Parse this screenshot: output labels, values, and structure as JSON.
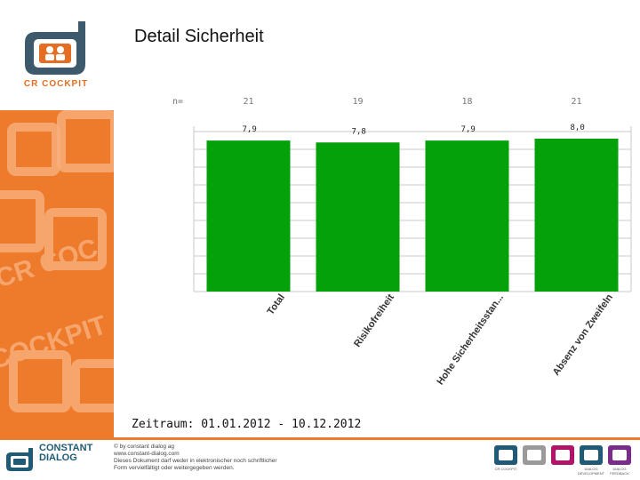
{
  "page": {
    "title": "Detail Sicherheit",
    "period": "Zeitraum: 01.01.2012 - 10.12.2012",
    "logo_label": "CR COCKPIT"
  },
  "footer": {
    "company_line1": "CONSTANT",
    "company_line2": "DIALOG",
    "copyright_lines": [
      "© by constant dialog ag",
      "www.constant-dialog.com",
      "Dieses Dokument darf weder in elektronischer noch schriftlicher",
      "Form vervielfältigt oder weitergegeben werden."
    ],
    "product_logos": [
      {
        "label": "CR COCKPIT",
        "color": "#1f5b76"
      },
      {
        "label": "",
        "color": "#9a9a9a"
      },
      {
        "label": "",
        "color": "#b0156a"
      },
      {
        "label": "DIALOG DEVELOPMENT",
        "color": "#1f5b76"
      },
      {
        "label": "DIALOG FEEDBACK",
        "color": "#7a2c8a"
      }
    ]
  },
  "chart_data": {
    "type": "bar",
    "n_prefix": "n=",
    "categories": [
      "Total",
      "Risikofreiheit",
      "Hohe Sicherheitsstan...",
      "Absenz von Zweifeln"
    ],
    "n_values": [
      "21",
      "19",
      "18",
      "21"
    ],
    "values": [
      7.9,
      7.8,
      7.9,
      8.0
    ],
    "value_labels": [
      "7,9",
      "7,8",
      "7,9",
      "8,0"
    ],
    "ylim": [
      0,
      8
    ],
    "grid": true,
    "bar_color": "#05a10a"
  }
}
